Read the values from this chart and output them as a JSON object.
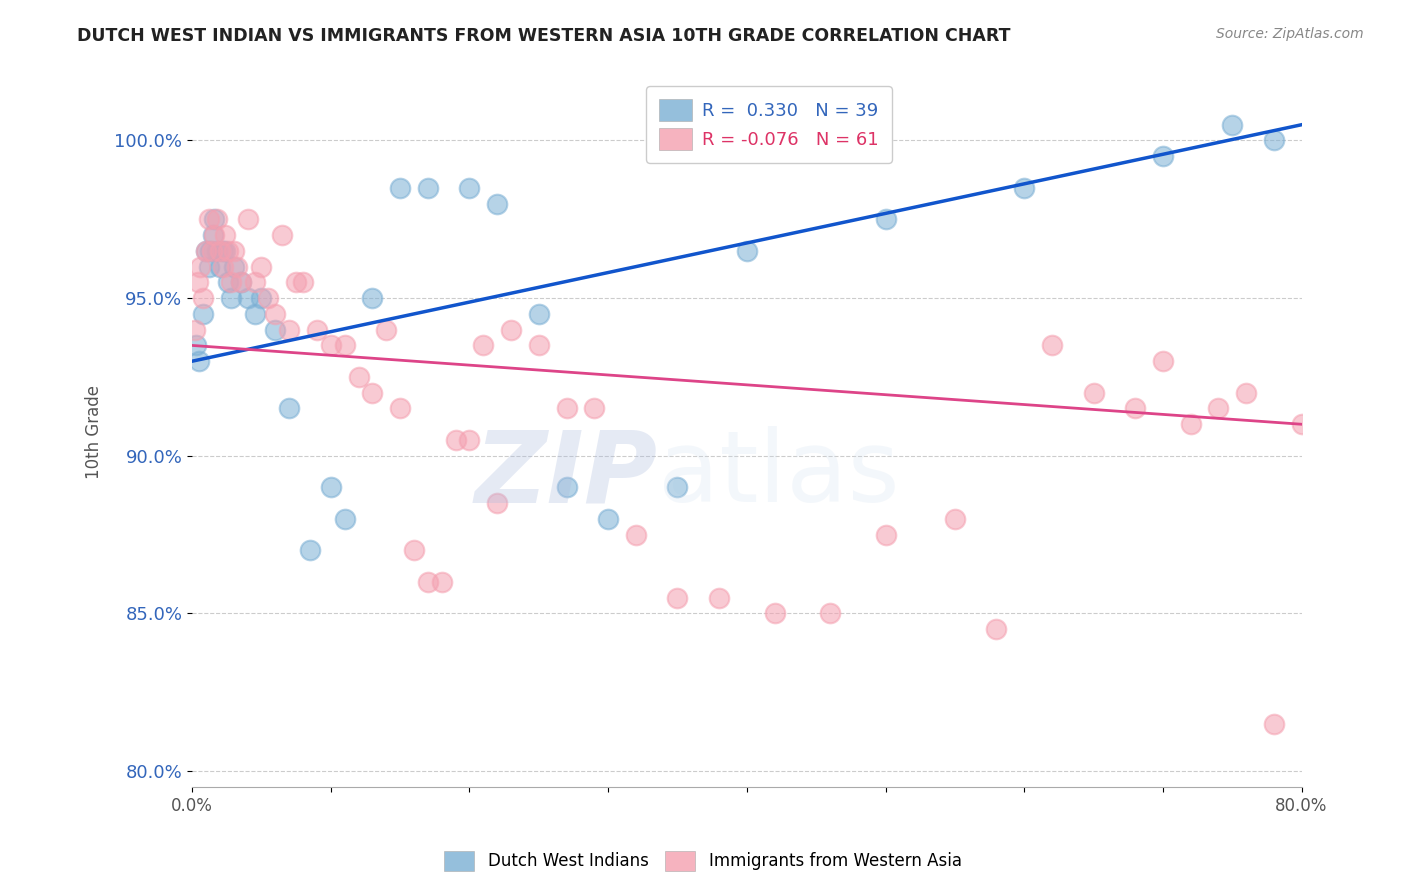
{
  "title": "DUTCH WEST INDIAN VS IMMIGRANTS FROM WESTERN ASIA 10TH GRADE CORRELATION CHART",
  "source": "Source: ZipAtlas.com",
  "ylabel": "10th Grade",
  "y_ticks": [
    80.0,
    85.0,
    90.0,
    95.0,
    100.0
  ],
  "x_min": 0.0,
  "x_max": 80.0,
  "y_min": 79.5,
  "y_max": 102.0,
  "legend_r1": "R =  0.330   N = 39",
  "legend_r2": "R = -0.076   N = 61",
  "legend_label1": "Dutch West Indians",
  "legend_label2": "Immigrants from Western Asia",
  "blue_color": "#7BAFD4",
  "pink_color": "#F4A0B0",
  "trend_blue": "#1155CC",
  "trend_pink": "#DD4488",
  "blue_dots_x": [
    0.3,
    0.5,
    0.8,
    1.0,
    1.2,
    1.3,
    1.5,
    1.6,
    1.8,
    2.0,
    2.2,
    2.4,
    2.6,
    2.8,
    3.0,
    3.5,
    4.0,
    4.5,
    5.0,
    6.0,
    7.0,
    8.5,
    10.0,
    11.0,
    13.0,
    15.0,
    17.0,
    20.0,
    22.0,
    25.0,
    27.0,
    30.0,
    35.0,
    40.0,
    50.0,
    60.0,
    70.0,
    75.0,
    78.0
  ],
  "blue_dots_y": [
    93.5,
    93.0,
    94.5,
    96.5,
    96.0,
    96.5,
    97.0,
    97.5,
    96.5,
    96.0,
    96.5,
    96.5,
    95.5,
    95.0,
    96.0,
    95.5,
    95.0,
    94.5,
    95.0,
    94.0,
    91.5,
    87.0,
    89.0,
    88.0,
    95.0,
    98.5,
    98.5,
    98.5,
    98.0,
    94.5,
    89.0,
    88.0,
    89.0,
    96.5,
    97.5,
    98.5,
    99.5,
    100.5,
    100.0
  ],
  "pink_dots_x": [
    0.2,
    0.4,
    0.6,
    0.8,
    1.0,
    1.2,
    1.4,
    1.6,
    1.8,
    2.0,
    2.2,
    2.4,
    2.6,
    2.8,
    3.0,
    3.2,
    3.5,
    4.0,
    4.5,
    5.0,
    5.5,
    6.0,
    6.5,
    7.0,
    7.5,
    8.0,
    9.0,
    10.0,
    11.0,
    12.0,
    13.0,
    14.0,
    15.0,
    16.0,
    17.0,
    18.0,
    19.0,
    20.0,
    21.0,
    22.0,
    23.0,
    25.0,
    27.0,
    29.0,
    32.0,
    35.0,
    38.0,
    42.0,
    46.0,
    50.0,
    55.0,
    58.0,
    62.0,
    65.0,
    68.0,
    70.0,
    72.0,
    74.0,
    76.0,
    78.0,
    80.0
  ],
  "pink_dots_y": [
    94.0,
    95.5,
    96.0,
    95.0,
    96.5,
    97.5,
    96.5,
    97.0,
    97.5,
    96.5,
    96.0,
    97.0,
    96.5,
    95.5,
    96.5,
    96.0,
    95.5,
    97.5,
    95.5,
    96.0,
    95.0,
    94.5,
    97.0,
    94.0,
    95.5,
    95.5,
    94.0,
    93.5,
    93.5,
    92.5,
    92.0,
    94.0,
    91.5,
    87.0,
    86.0,
    86.0,
    90.5,
    90.5,
    93.5,
    88.5,
    94.0,
    93.5,
    91.5,
    91.5,
    87.5,
    85.5,
    85.5,
    85.0,
    85.0,
    87.5,
    88.0,
    84.5,
    93.5,
    92.0,
    91.5,
    93.0,
    91.0,
    91.5,
    92.0,
    81.5,
    91.0
  ]
}
